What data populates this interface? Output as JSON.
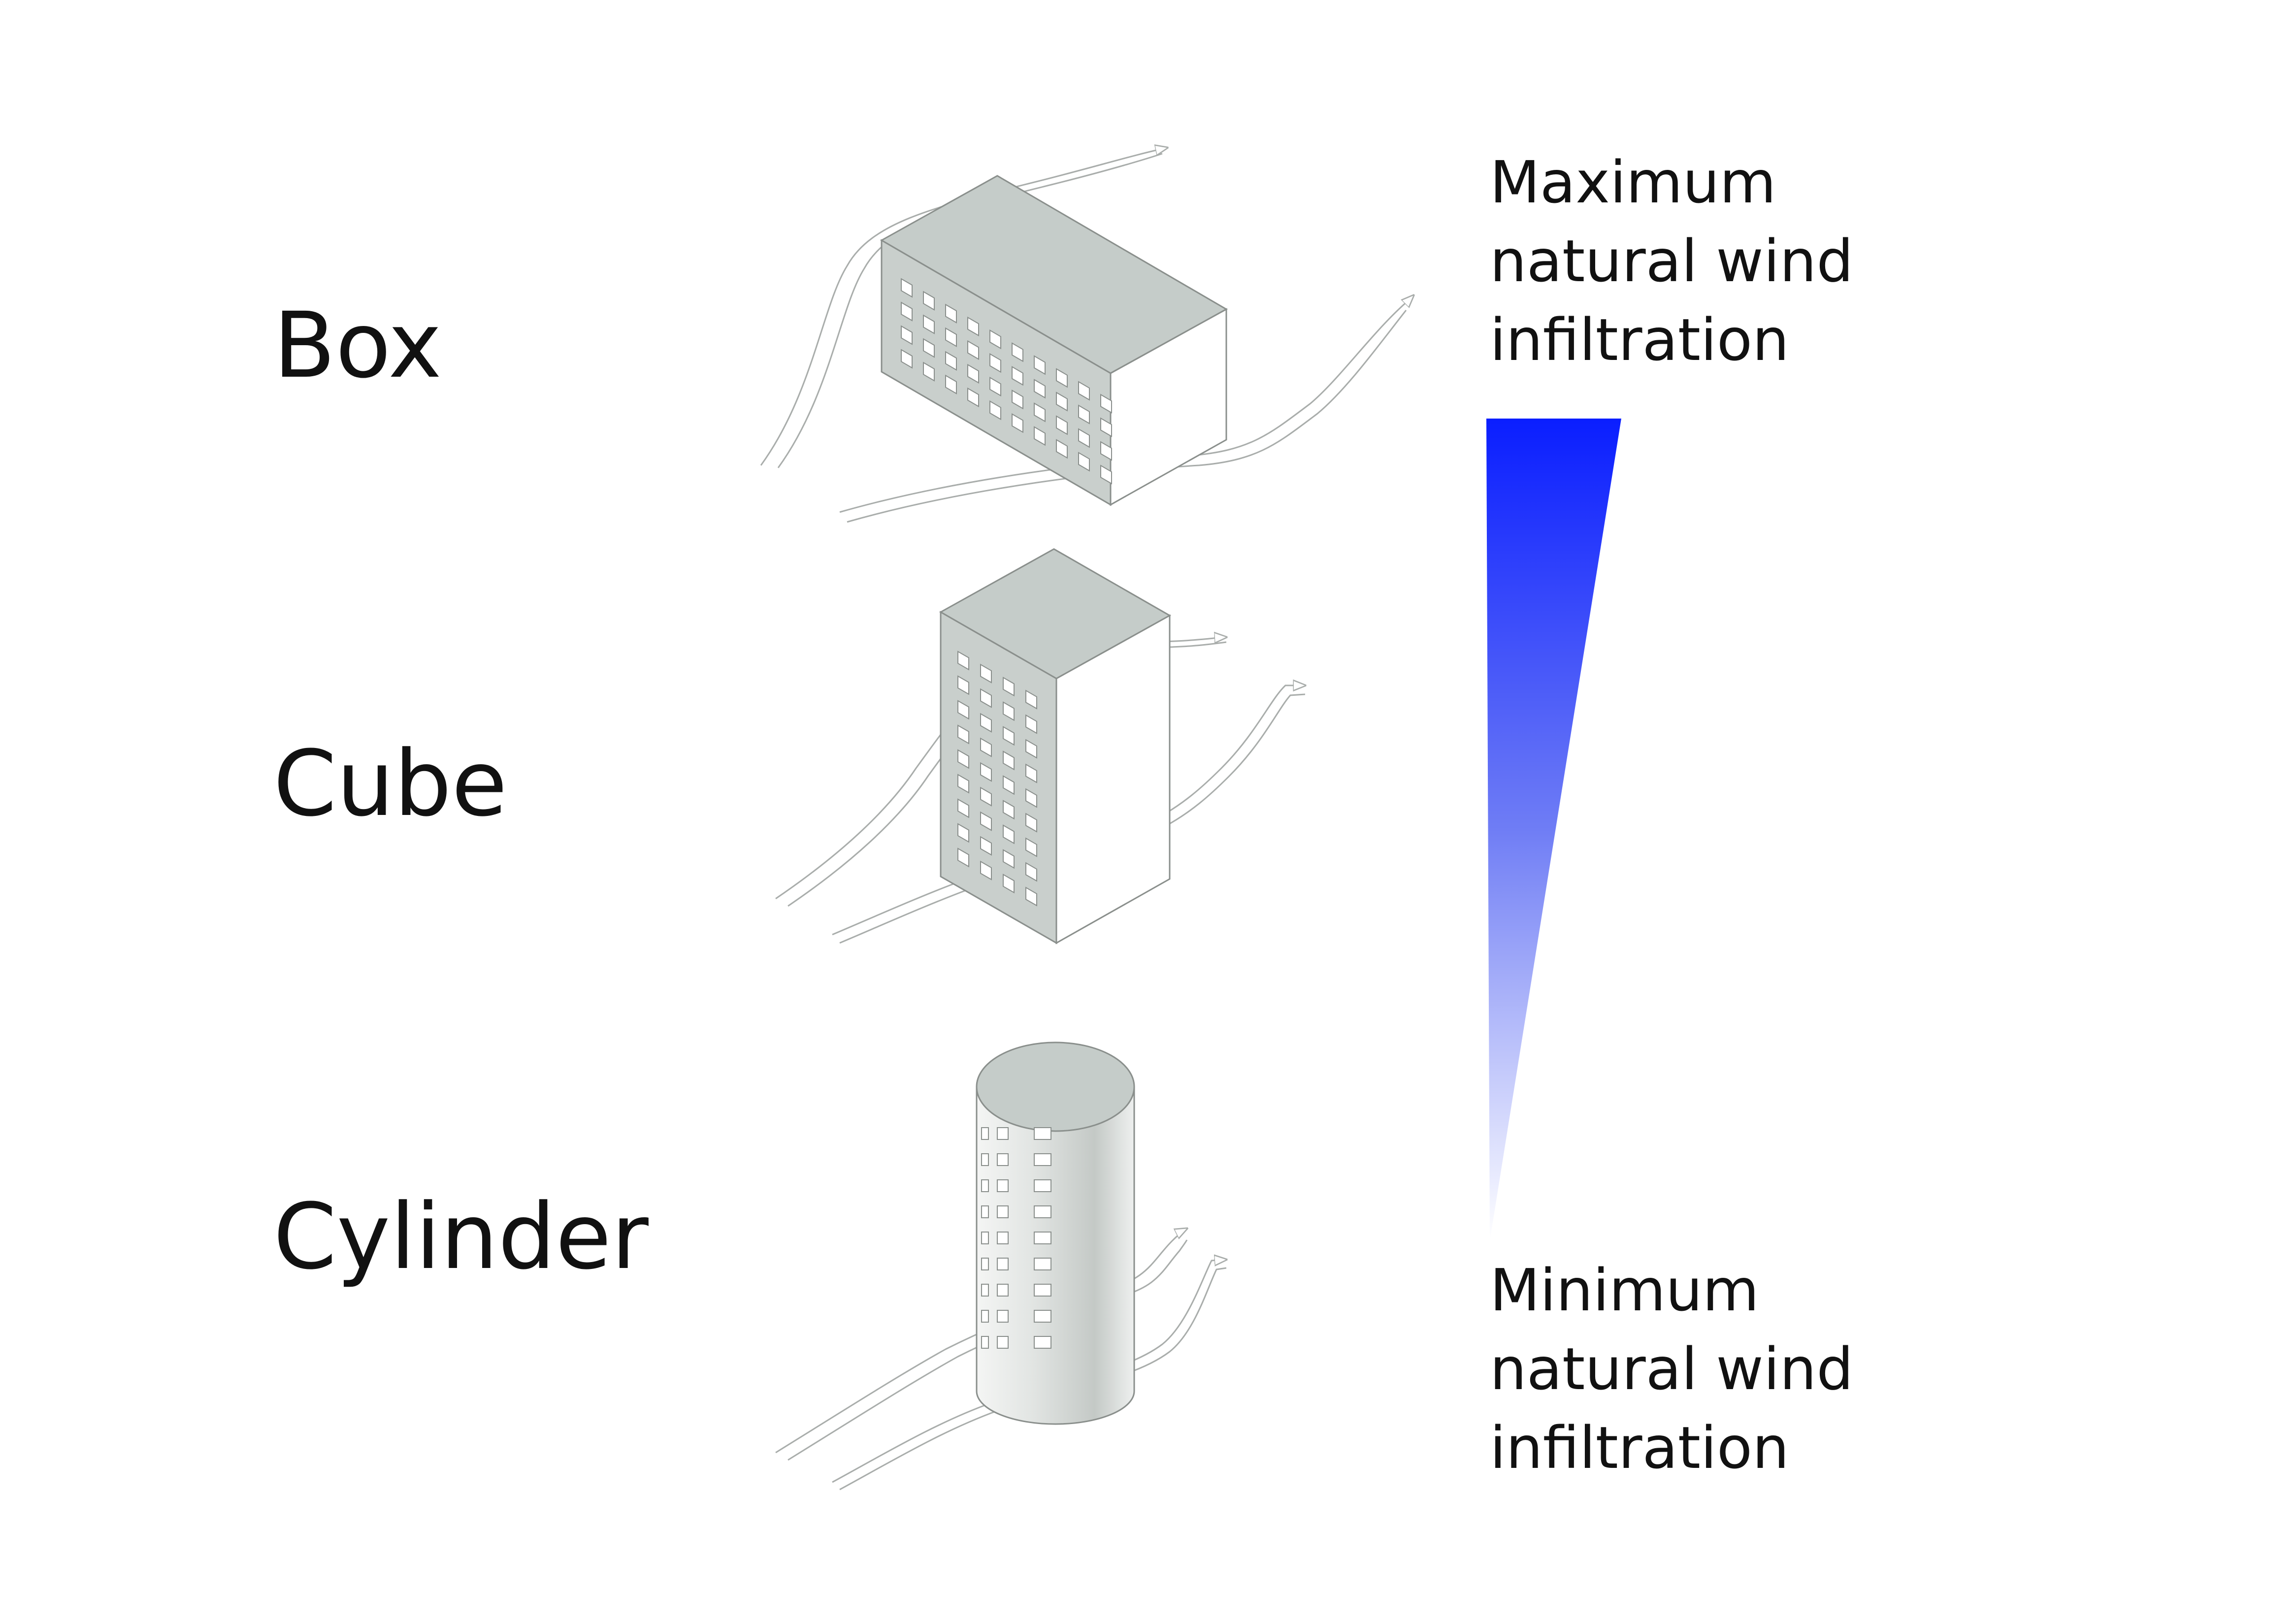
{
  "shapes": [
    {
      "id": "box",
      "label": "Box"
    },
    {
      "id": "cube",
      "label": "Cube"
    },
    {
      "id": "cylinder",
      "label": "Cylinder"
    }
  ],
  "legend": {
    "max_lines": [
      "Maximum",
      "natural wind",
      "infiltration"
    ],
    "min_lines": [
      "Minimum",
      "natural wind",
      "infiltration"
    ],
    "gradient_colors": [
      "#0a1eff",
      "#ffffff"
    ]
  },
  "colors": {
    "facade": "#c8cecb",
    "side": "#ffffff",
    "outline": "#8a8f8c",
    "wind": "#a9adab"
  },
  "icons": [
    "wind-arrow-icon",
    "window-icon"
  ]
}
